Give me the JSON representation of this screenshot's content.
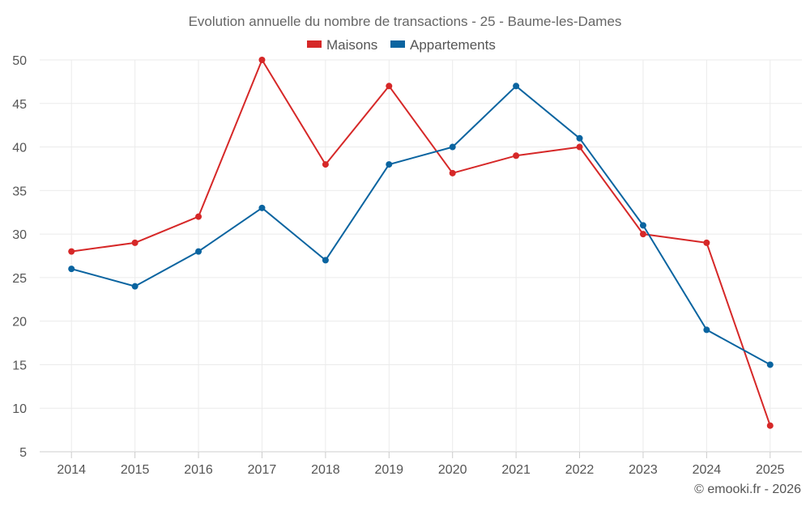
{
  "chart_data": {
    "type": "line",
    "title": "Evolution annuelle du nombre de transactions - 25 - Baume-les-Dames",
    "categories": [
      "2014",
      "2015",
      "2016",
      "2017",
      "2018",
      "2019",
      "2020",
      "2021",
      "2022",
      "2023",
      "2024",
      "2025"
    ],
    "series": [
      {
        "name": "Maisons",
        "color": "#d62828",
        "values": [
          28,
          29,
          32,
          50,
          38,
          47,
          37,
          39,
          40,
          30,
          29,
          8
        ]
      },
      {
        "name": "Appartements",
        "color": "#0a64a0",
        "values": [
          26,
          24,
          28,
          33,
          27,
          38,
          40,
          47,
          41,
          31,
          19,
          15
        ]
      }
    ],
    "ylim": [
      5,
      50
    ],
    "yticks": [
      5,
      10,
      15,
      20,
      25,
      30,
      35,
      40,
      45,
      50
    ],
    "grid": true,
    "legend": "top-center",
    "xlabel": "",
    "ylabel": ""
  },
  "credit": "© emooki.fr - 2026"
}
